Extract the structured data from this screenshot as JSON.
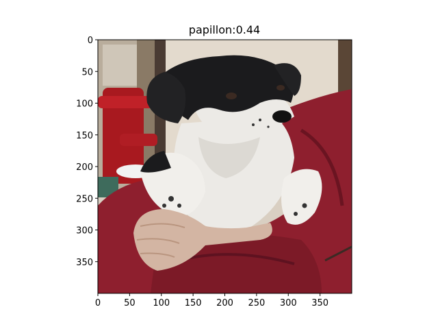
{
  "figure": {
    "title": "papillon:0.44",
    "image_subject": "black-and-white-dog-held-in-arms"
  },
  "axes": {
    "x_ticks": [
      "0",
      "50",
      "100",
      "150",
      "200",
      "250",
      "300",
      "350"
    ],
    "y_ticks": [
      "0",
      "50",
      "100",
      "150",
      "200",
      "250",
      "300",
      "350"
    ],
    "x_tick_values": [
      0,
      50,
      100,
      150,
      200,
      250,
      300,
      350
    ],
    "y_tick_values": [
      0,
      50,
      100,
      150,
      200,
      250,
      300,
      350
    ],
    "xlim": [
      0,
      400
    ],
    "ylim": [
      400,
      0
    ]
  },
  "colors": {
    "sweater": "#8e1f2e",
    "sweater_shadow": "#6a1421",
    "background_wall": "#d7cdbf",
    "door_frame": "#4a3b33",
    "hydrant": "#a8191f",
    "dog_black": "#1b1b1d",
    "dog_white": "#eceae6",
    "skin": "#d3b5a3"
  }
}
